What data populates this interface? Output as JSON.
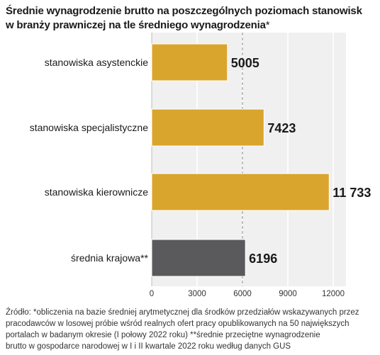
{
  "title": {
    "line1": "Średnie wynagrodzenie brutto na poszczególnych poziomach stanowisk",
    "line2": "w branży prawniczej na tle średniego wynagrodzenia",
    "marker": "*"
  },
  "chart_data": {
    "type": "bar",
    "orientation": "horizontal",
    "categories": [
      "stanowiska asystenckie",
      "stanowiska specjalistyczne",
      "stanowiska kierownicze",
      "średnia krajowa**"
    ],
    "values": [
      5005,
      7423,
      11733,
      6196
    ],
    "value_labels": [
      "5005",
      "7423",
      "11 733",
      "6196"
    ],
    "bar_colors": [
      "#d9a52c",
      "#d9a52c",
      "#d9a52c",
      "#5a5a5c"
    ],
    "xlim": [
      0,
      12000
    ],
    "xticks": [
      0,
      3000,
      6000,
      9000,
      12000
    ],
    "xtick_labels": [
      "0",
      "3000",
      "6000",
      "9000",
      "12000"
    ],
    "reference_line": 6000,
    "grid": true
  },
  "colors": {
    "plot_background": "#f0f0f0",
    "bar_accent": "#d9a52c",
    "bar_reference": "#5a5a5c"
  },
  "footer": {
    "line1": "Źródło: *obliczenia na bazie średniej arytmetycznej dla środków przedziałów wskazywanych przez",
    "line2": "pracodawców w losowej próbie wśród realnych ofert pracy opublikowanych na 50 największych",
    "line3": "portalach w badanym okresie (I połowy 2022 roku) **średnie przeciętne wynagrodzenie",
    "line4": "brutto w gospodarce narodowej w I i II kwartale 2022 roku według danych GUS"
  }
}
